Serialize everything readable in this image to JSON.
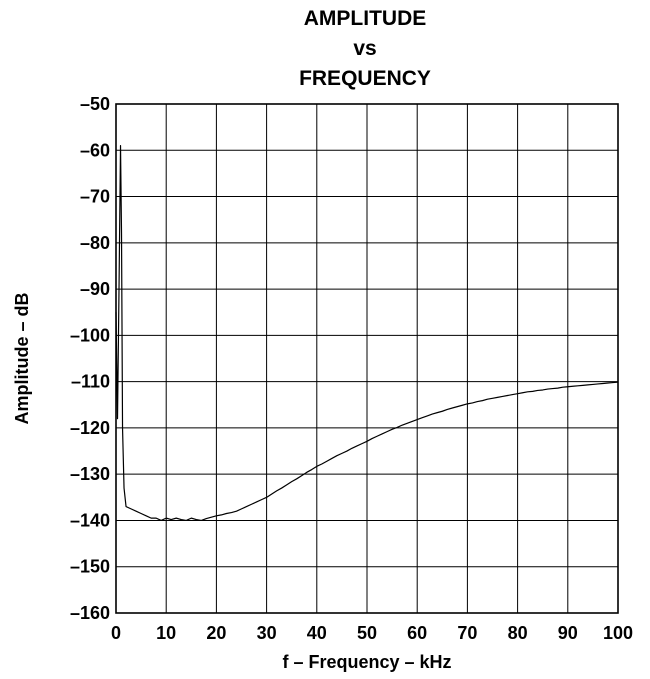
{
  "chart_data": {
    "type": "line",
    "title_lines": [
      "AMPLITUDE",
      "vs",
      "FREQUENCY"
    ],
    "xlabel": "f – Frequency – kHz",
    "ylabel": "Amplitude – dB",
    "xlim": [
      0,
      100
    ],
    "ylim": [
      -160,
      -50
    ],
    "x_ticks": [
      0,
      10,
      20,
      30,
      40,
      50,
      60,
      70,
      80,
      90,
      100
    ],
    "y_ticks": [
      -50,
      -60,
      -70,
      -80,
      -90,
      -100,
      -110,
      -120,
      -130,
      -140,
      -150,
      -160
    ],
    "x_tick_labels": [
      "0",
      "10",
      "20",
      "30",
      "40",
      "50",
      "60",
      "70",
      "80",
      "90",
      "100"
    ],
    "y_tick_labels": [
      "–50",
      "–60",
      "–70",
      "–80",
      "–90",
      "–100",
      "–110",
      "–120",
      "–130",
      "–140",
      "–150",
      "–160"
    ],
    "grid": true,
    "series": [
      {
        "color": "#000000",
        "points": [
          [
            0.0,
            -95
          ],
          [
            0.3,
            -118
          ],
          [
            0.6,
            -90
          ],
          [
            0.9,
            -59
          ],
          [
            1.1,
            -78
          ],
          [
            1.3,
            -120
          ],
          [
            1.6,
            -133
          ],
          [
            2.0,
            -137
          ],
          [
            3,
            -137.5
          ],
          [
            4,
            -138
          ],
          [
            5,
            -138.5
          ],
          [
            6,
            -139
          ],
          [
            7,
            -139.5
          ],
          [
            8,
            -139.5
          ],
          [
            9,
            -140
          ],
          [
            10,
            -139.5
          ],
          [
            11,
            -139.8
          ],
          [
            12,
            -139.5
          ],
          [
            13,
            -139.8
          ],
          [
            14,
            -140
          ],
          [
            15,
            -139.5
          ],
          [
            16,
            -139.8
          ],
          [
            17,
            -140
          ],
          [
            18,
            -139.6
          ],
          [
            19,
            -139.3
          ],
          [
            20,
            -139
          ],
          [
            21,
            -138.8
          ],
          [
            22,
            -138.5
          ],
          [
            23,
            -138.3
          ],
          [
            24,
            -138
          ],
          [
            25,
            -137.5
          ],
          [
            26,
            -137
          ],
          [
            27,
            -136.5
          ],
          [
            28,
            -136
          ],
          [
            29,
            -135.5
          ],
          [
            30,
            -135
          ],
          [
            31,
            -134.3
          ],
          [
            32,
            -133.6
          ],
          [
            33,
            -133
          ],
          [
            34,
            -132.3
          ],
          [
            35,
            -131.6
          ],
          [
            36,
            -131
          ],
          [
            37,
            -130.3
          ],
          [
            38,
            -129.6
          ],
          [
            39,
            -129
          ],
          [
            40,
            -128.3
          ],
          [
            41,
            -127.8
          ],
          [
            42,
            -127.2
          ],
          [
            43,
            -126.6
          ],
          [
            44,
            -126
          ],
          [
            45,
            -125.5
          ],
          [
            46,
            -125
          ],
          [
            47,
            -124.4
          ],
          [
            48,
            -123.9
          ],
          [
            49,
            -123.4
          ],
          [
            50,
            -122.9
          ],
          [
            51,
            -122.3
          ],
          [
            52,
            -121.8
          ],
          [
            53,
            -121.3
          ],
          [
            54,
            -120.8
          ],
          [
            55,
            -120.3
          ],
          [
            56,
            -119.9
          ],
          [
            57,
            -119.4
          ],
          [
            58,
            -119
          ],
          [
            59,
            -118.6
          ],
          [
            60,
            -118.2
          ],
          [
            61,
            -117.8
          ],
          [
            62,
            -117.4
          ],
          [
            63,
            -117
          ],
          [
            64,
            -116.7
          ],
          [
            65,
            -116.4
          ],
          [
            66,
            -116
          ],
          [
            67,
            -115.7
          ],
          [
            68,
            -115.4
          ],
          [
            69,
            -115.1
          ],
          [
            70,
            -114.8
          ],
          [
            71,
            -114.6
          ],
          [
            72,
            -114.3
          ],
          [
            73,
            -114.1
          ],
          [
            74,
            -113.8
          ],
          [
            75,
            -113.6
          ],
          [
            76,
            -113.4
          ],
          [
            77,
            -113.2
          ],
          [
            78,
            -113
          ],
          [
            79,
            -112.8
          ],
          [
            80,
            -112.6
          ],
          [
            81,
            -112.4
          ],
          [
            82,
            -112.2
          ],
          [
            83,
            -112.1
          ],
          [
            84,
            -111.9
          ],
          [
            85,
            -111.8
          ],
          [
            86,
            -111.6
          ],
          [
            87,
            -111.5
          ],
          [
            88,
            -111.4
          ],
          [
            89,
            -111.2
          ],
          [
            90,
            -111.1
          ],
          [
            91,
            -111
          ],
          [
            92,
            -110.9
          ],
          [
            93,
            -110.8
          ],
          [
            94,
            -110.7
          ],
          [
            95,
            -110.6
          ],
          [
            96,
            -110.5
          ],
          [
            97,
            -110.4
          ],
          [
            98,
            -110.3
          ],
          [
            99,
            -110.2
          ],
          [
            100,
            -110.1
          ]
        ]
      }
    ]
  }
}
